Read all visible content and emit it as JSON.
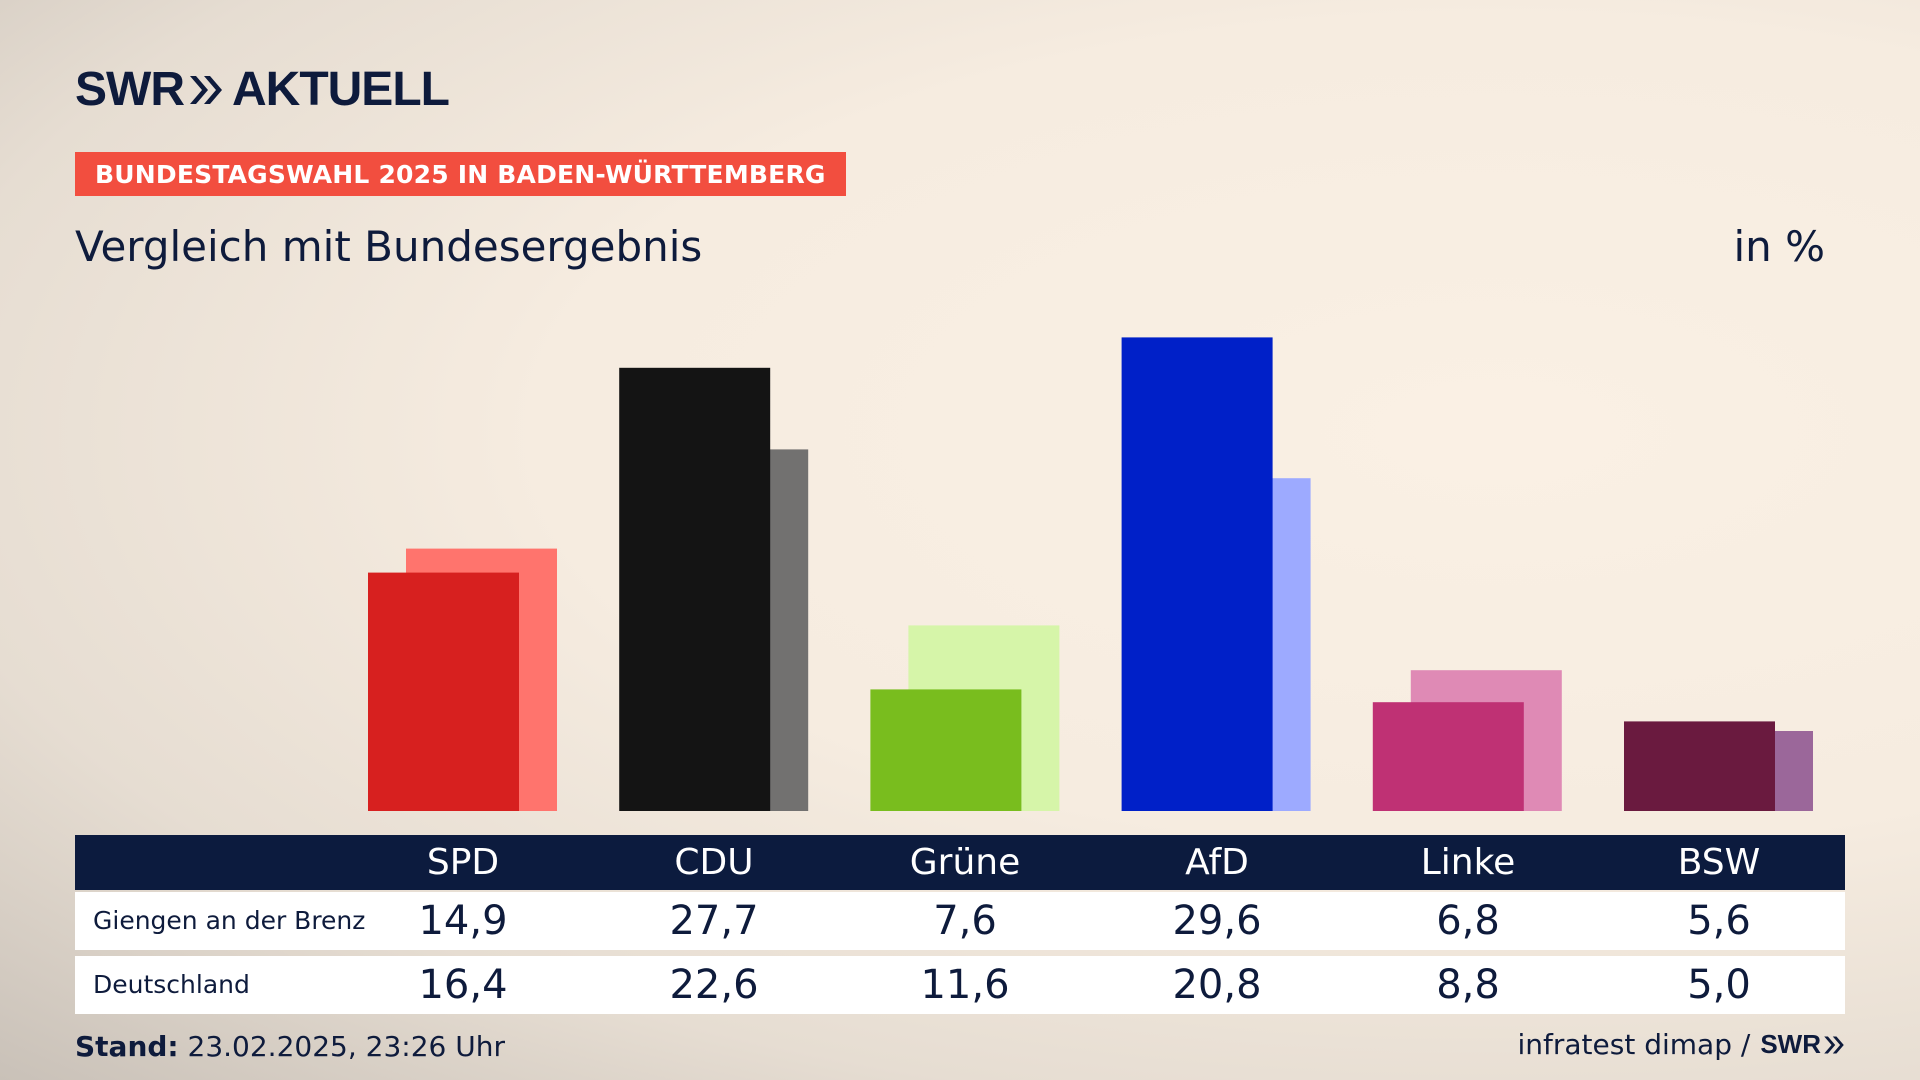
{
  "header": {
    "brand": "SWR",
    "brand_suffix": "AKTUELL",
    "badge": "BUNDESTAGSWAHL 2025 IN BADEN-WÜRTTEMBERG",
    "subtitle": "Vergleich mit Bundesergebnis",
    "unit": "in %"
  },
  "colors": {
    "navy": "#0c1b3e",
    "badge": "#f24e3f"
  },
  "chart_data": {
    "type": "bar",
    "title": "Vergleich mit Bundesergebnis",
    "ylabel": "in %",
    "ylim": [
      0,
      30
    ],
    "categories": [
      "SPD",
      "CDU",
      "Grüne",
      "AfD",
      "Linke",
      "BSW"
    ],
    "series": [
      {
        "name": "Giengen an der Brenz",
        "values": [
          14.9,
          27.7,
          7.6,
          29.6,
          6.8,
          5.6
        ],
        "colors": [
          "#d7201f",
          "#141414",
          "#79bd1e",
          "#0020c8",
          "#bf3174",
          "#6a1a3f"
        ]
      },
      {
        "name": "Deutschland",
        "values": [
          16.4,
          22.6,
          11.6,
          20.8,
          8.8,
          5.0
        ],
        "colors": [
          "#ff746d",
          "#727170",
          "#d6f5a9",
          "#9daaff",
          "#df8ab5",
          "#9b679a"
        ]
      }
    ]
  },
  "table": {
    "headers": [
      "SPD",
      "CDU",
      "Grüne",
      "AfD",
      "Linke",
      "BSW"
    ],
    "rows": [
      {
        "label": "Giengen an der Brenz",
        "values": [
          "14,9",
          "27,7",
          "7,6",
          "29,6",
          "6,8",
          "5,6"
        ]
      },
      {
        "label": "Deutschland",
        "values": [
          "16,4",
          "22,6",
          "11,6",
          "20,8",
          "8,8",
          "5,0"
        ]
      }
    ]
  },
  "footer": {
    "stand_label": "Stand:",
    "stand_value": " 23.02.2025, 23:26 Uhr",
    "source": "infratest dimap /",
    "source_logo": "SWR"
  }
}
